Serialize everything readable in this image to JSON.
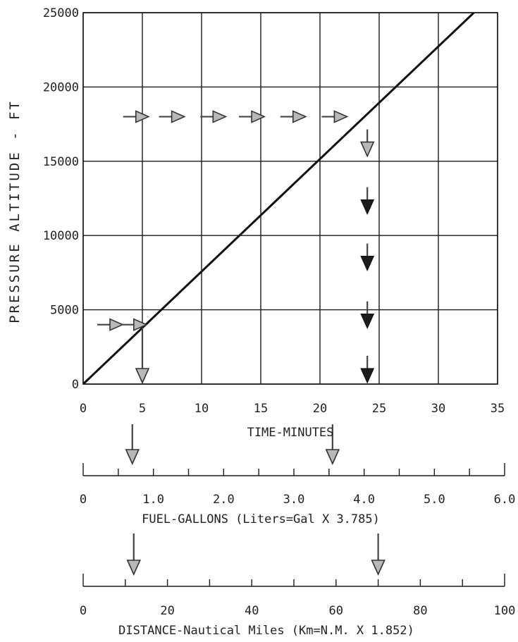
{
  "chart_data": {
    "type": "line",
    "xlabel": "TIME-MINUTES",
    "ylabel": "PRESSURE ALTITUDE - FT",
    "xlim": [
      0,
      35
    ],
    "ylim": [
      0,
      25000
    ],
    "x_ticks": [
      "0",
      "5",
      "10",
      "15",
      "20",
      "25",
      "30",
      "35"
    ],
    "y_ticks": [
      "0",
      "5000",
      "10000",
      "15000",
      "20000",
      "25000"
    ],
    "grid": true,
    "series": [
      {
        "x": [
          0,
          33
        ],
        "y": [
          0,
          25000
        ]
      }
    ],
    "example_paths": [
      {
        "altitude": 4000,
        "time": 5,
        "fuel": 0.7,
        "distance": 12
      },
      {
        "altitude": 18000,
        "time": 24,
        "fuel": 3.55,
        "distance": 70
      }
    ],
    "secondary_scales": [
      {
        "id": "fuel",
        "label": "FUEL-GALLONS (Liters=Gal X 3.785)",
        "range": [
          0,
          6.0
        ],
        "minor_step": 0.5,
        "tick_labels": [
          "0",
          "1.0",
          "2.0",
          "3.0",
          "4.0",
          "5.0",
          "6.0"
        ]
      },
      {
        "id": "distance",
        "label": "DISTANCE-Nautical Miles (Km=N.M. X 1.852)",
        "range": [
          0,
          100
        ],
        "minor_step": 10,
        "tick_labels": [
          "0",
          "20",
          "40",
          "60",
          "80",
          "100"
        ]
      }
    ]
  }
}
